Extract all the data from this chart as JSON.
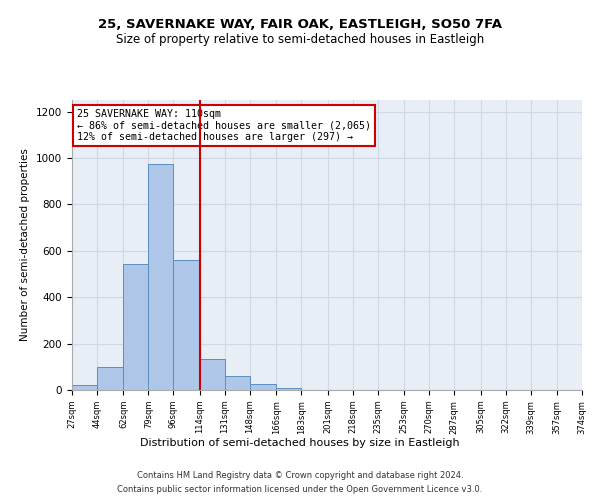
{
  "title_line1": "25, SAVERNAKE WAY, FAIR OAK, EASTLEIGH, SO50 7FA",
  "title_line2": "Size of property relative to semi-detached houses in Eastleigh",
  "xlabel": "Distribution of semi-detached houses by size in Eastleigh",
  "ylabel": "Number of semi-detached properties",
  "annotation_title": "25 SAVERNAKE WAY: 110sqm",
  "annotation_line2": "← 86% of semi-detached houses are smaller (2,065)",
  "annotation_line3": "12% of semi-detached houses are larger (297) →",
  "property_size": 110,
  "footnote1": "Contains HM Land Registry data © Crown copyright and database right 2024.",
  "footnote2": "Contains public sector information licensed under the Open Government Licence v3.0.",
  "bin_edges": [
    27,
    44,
    62,
    79,
    96,
    114,
    131,
    148,
    166,
    183,
    201,
    218,
    235,
    253,
    270,
    287,
    305,
    322,
    339,
    357,
    374
  ],
  "bar_heights": [
    20,
    100,
    545,
    975,
    560,
    135,
    60,
    28,
    10,
    0,
    0,
    0,
    0,
    0,
    0,
    0,
    0,
    0,
    0,
    0
  ],
  "bar_color": "#aec6e8",
  "bar_edgecolor": "#5a8fc2",
  "vline_color": "#cc0000",
  "vline_x": 114,
  "annotation_box_color": "#cc0000",
  "grid_color": "#d0d8e8",
  "plot_bg_color": "#e8eef5",
  "background_color": "#ffffff",
  "ylim": [
    0,
    1250
  ],
  "yticks": [
    0,
    200,
    400,
    600,
    800,
    1000,
    1200
  ]
}
